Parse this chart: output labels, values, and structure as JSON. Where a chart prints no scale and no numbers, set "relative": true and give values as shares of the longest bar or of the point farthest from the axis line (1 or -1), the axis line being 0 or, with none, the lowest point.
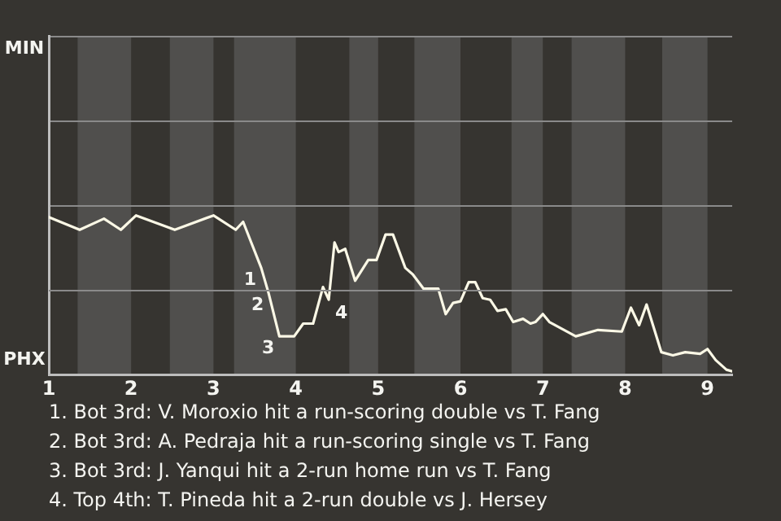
{
  "chart_data": {
    "type": "line",
    "relative": true,
    "x": [
      1.0,
      1.375,
      1.67,
      1.875,
      2.06,
      2.53,
      3.0,
      3.27,
      3.36,
      3.58,
      3.67,
      3.8,
      3.98,
      4.09,
      4.21,
      4.33,
      4.4,
      4.47,
      4.52,
      4.6,
      4.72,
      4.88,
      4.98,
      5.09,
      5.18,
      5.33,
      5.42,
      5.55,
      5.73,
      5.82,
      5.91,
      6.0,
      6.1,
      6.18,
      6.27,
      6.36,
      6.45,
      6.55,
      6.64,
      6.76,
      6.85,
      6.91,
      7.0,
      7.08,
      7.4,
      7.67,
      7.96,
      8.07,
      8.17,
      8.26,
      8.44,
      8.58,
      8.73,
      8.91,
      9.0,
      9.1,
      9.23,
      9.3
    ],
    "series": [
      {
        "color": "#fbf8e6",
        "values": [
          0.99,
          0.91,
          0.98,
          0.91,
          1,
          0.91,
          1,
          0.91,
          0.96,
          0.67,
          0.51,
          0.24,
          0.24,
          0.32,
          0.32,
          0.55,
          0.47,
          0.83,
          0.77,
          0.79,
          0.59,
          0.72,
          0.72,
          0.88,
          0.88,
          0.67,
          0.63,
          0.54,
          0.54,
          0.38,
          0.45,
          0.46,
          0.58,
          0.58,
          0.48,
          0.47,
          0.4,
          0.41,
          0.33,
          0.35,
          0.32,
          0.33,
          0.38,
          0.33,
          0.24,
          0.28,
          0.27,
          0.42,
          0.31,
          0.44,
          0.14,
          0.12,
          0.14,
          0.13,
          0.16,
          0.09,
          0.03,
          0.02
        ]
      }
    ],
    "xlim": [
      1,
      9.3
    ],
    "xticks": [
      1,
      2,
      3,
      4,
      5,
      6,
      7,
      8,
      9
    ],
    "tick_labels": "x",
    "bands": [
      {
        "axis": "x",
        "from": 1.35,
        "to": 2,
        "color": "#504f4d"
      },
      {
        "axis": "x",
        "from": 2.47,
        "to": 3,
        "color": "#504f4d"
      },
      {
        "axis": "x",
        "from": 3.25,
        "to": 4,
        "color": "#504f4d"
      },
      {
        "axis": "x",
        "from": 4.65,
        "to": 5,
        "color": "#504f4d"
      },
      {
        "axis": "x",
        "from": 5.44,
        "to": 6,
        "color": "#504f4d"
      },
      {
        "axis": "x",
        "from": 6.62,
        "to": 7,
        "color": "#504f4d"
      },
      {
        "axis": "x",
        "from": 7.35,
        "to": 8,
        "color": "#504f4d"
      },
      {
        "axis": "x",
        "from": 8.45,
        "to": 9,
        "color": "#504f4d"
      }
    ],
    "ref_lines": [
      {
        "axis": "y",
        "value": 0.53,
        "color": "#8a8a8a"
      }
    ],
    "legend": false,
    "marker": "none",
    "line_style": "solid",
    "annotations": [
      "MIN",
      "PHX",
      {
        "text": "1",
        "x": 3.58,
        "y": 0.67
      },
      {
        "text": "2",
        "x": 3.67,
        "y": 0.51
      },
      {
        "text": "3",
        "x": 3.8,
        "y": 0.24
      },
      {
        "text": "4",
        "x": 4.4,
        "y": 0.47
      },
      "1. Bot 3rd: V. Moroxio hit a run-scoring double vs T. Fang",
      "2. Bot 3rd: A. Pedraja hit a run-scoring single vs T. Fang",
      "3. Bot 3rd: J. Yanqui hit a 2-run home run vs T. Fang",
      "4. Top 4th: T. Pineda hit a 2-run double vs J. Hersey"
    ]
  }
}
